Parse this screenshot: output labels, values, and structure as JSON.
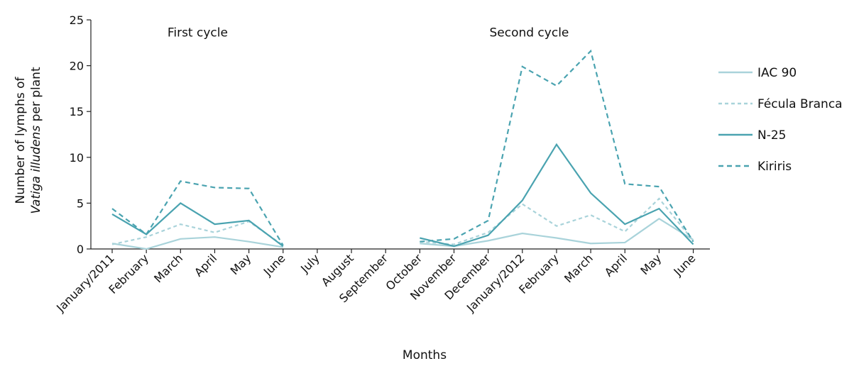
{
  "chart_data": {
    "type": "line",
    "xlabel": "Months",
    "ylabel_line1": "Number of lymphs of",
    "ylabel_italic": "Vatiga illudens",
    "ylabel_rest": " per plant",
    "ylim": [
      0,
      25
    ],
    "yticks": [
      0,
      5,
      10,
      15,
      20,
      25
    ],
    "categories": [
      "January/2011",
      "February",
      "March",
      "April",
      "May",
      "June",
      "July",
      "August",
      "September",
      "October",
      "November",
      "December",
      "January/2012",
      "February",
      "March",
      "April",
      "May",
      "June"
    ],
    "annotations": [
      {
        "text": "First cycle",
        "at_category_index": 2.5,
        "y": 23.2
      },
      {
        "text": "Second cycle",
        "at_category_index": 12.2,
        "y": 23.2
      }
    ],
    "series": [
      {
        "name": "IAC 90",
        "color": "#a9d3da",
        "dash": "solid",
        "values": [
          0.6,
          0.0,
          1.1,
          1.3,
          0.8,
          0.2,
          null,
          null,
          null,
          0.6,
          0.3,
          0.9,
          1.7,
          1.2,
          0.6,
          0.7,
          3.3,
          1.0
        ]
      },
      {
        "name": "Fécula Branca",
        "color": "#a9d3da",
        "dash": "dashed",
        "values": [
          0.5,
          1.3,
          2.7,
          1.8,
          3.0,
          0.4,
          null,
          null,
          null,
          0.8,
          0.5,
          1.8,
          4.9,
          2.5,
          3.7,
          1.9,
          5.5,
          0.9
        ]
      },
      {
        "name": "N-25",
        "color": "#4aa3b0",
        "dash": "solid",
        "values": [
          3.8,
          1.6,
          5.0,
          2.7,
          3.1,
          0.3,
          null,
          null,
          null,
          1.2,
          0.3,
          1.5,
          5.3,
          11.4,
          6.1,
          2.7,
          4.4,
          0.5
        ]
      },
      {
        "name": "Kiriris",
        "color": "#4aa3b0",
        "dash": "dashed",
        "values": [
          4.4,
          1.6,
          7.4,
          6.7,
          6.6,
          0.4,
          null,
          null,
          null,
          0.8,
          1.1,
          3.1,
          19.9,
          17.8,
          21.6,
          7.1,
          6.8,
          0.8
        ]
      }
    ],
    "legend_position": "right"
  }
}
